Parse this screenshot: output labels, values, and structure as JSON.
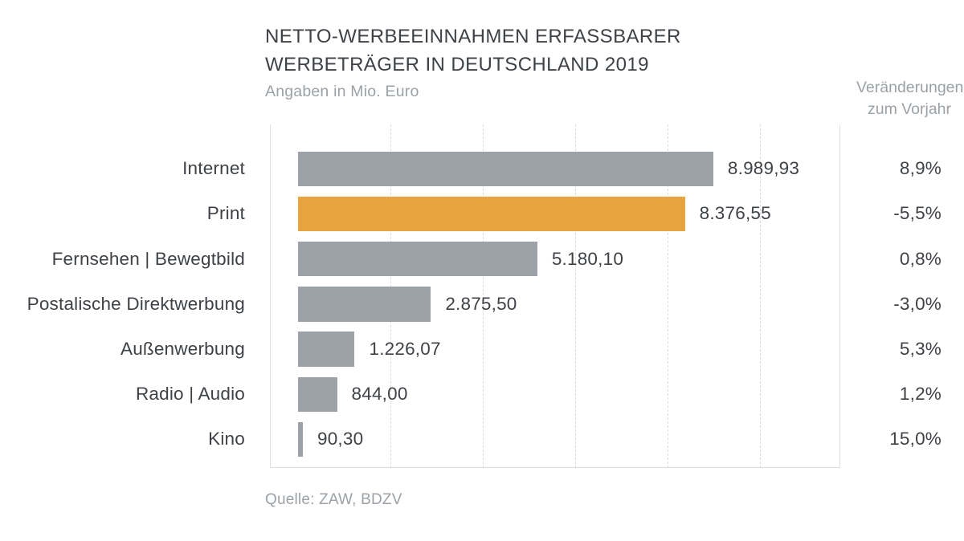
{
  "header": {
    "title_line1": "NETTO-WERBEEINNAHMEN ERFASSBARER",
    "title_line2": "WERBETRÄGER IN DEUTSCHLAND 2019",
    "subtitle": "Angaben in Mio. Euro",
    "change_header_line1": "Veränderungen",
    "change_header_line2": "zum Vorjahr"
  },
  "footer": {
    "source": "Quelle: ZAW, BDZV"
  },
  "chart_data": {
    "type": "bar",
    "orientation": "horizontal",
    "title": "NETTO-WERBEEINNAHMEN ERFASSBARER WERBETRÄGER IN DEUTSCHLAND 2019",
    "subtitle": "Angaben in Mio. Euro",
    "unit": "Mio. Euro",
    "source": "Quelle: ZAW, BDZV",
    "xlim": [
      0,
      10000
    ],
    "gridline_step": 2000,
    "grid": true,
    "legend": false,
    "bar_color": "#9ca2a7",
    "highlight_color": "#e8a43e",
    "highlighted_category": "Print",
    "change_column_header": "Veränderungen zum Vorjahr",
    "categories": [
      "Internet",
      "Print",
      "Fernsehen | Bewegtbild",
      "Postalische Direktwerbung",
      "Außenwerbung",
      "Radio | Audio",
      "Kino"
    ],
    "values": [
      8989.93,
      8376.55,
      5180.1,
      2875.5,
      1226.07,
      844.0,
      90.3
    ],
    "value_labels": [
      "8.989,93",
      "8.376,55",
      "5.180,10",
      "2.875,50",
      "1.226,07",
      "844,00",
      "90,30"
    ],
    "change_vs_prior_year": [
      "8,9%",
      "-5,5%",
      "0,8%",
      "-3,0%",
      "5,3%",
      "1,2%",
      "15,0%"
    ]
  }
}
